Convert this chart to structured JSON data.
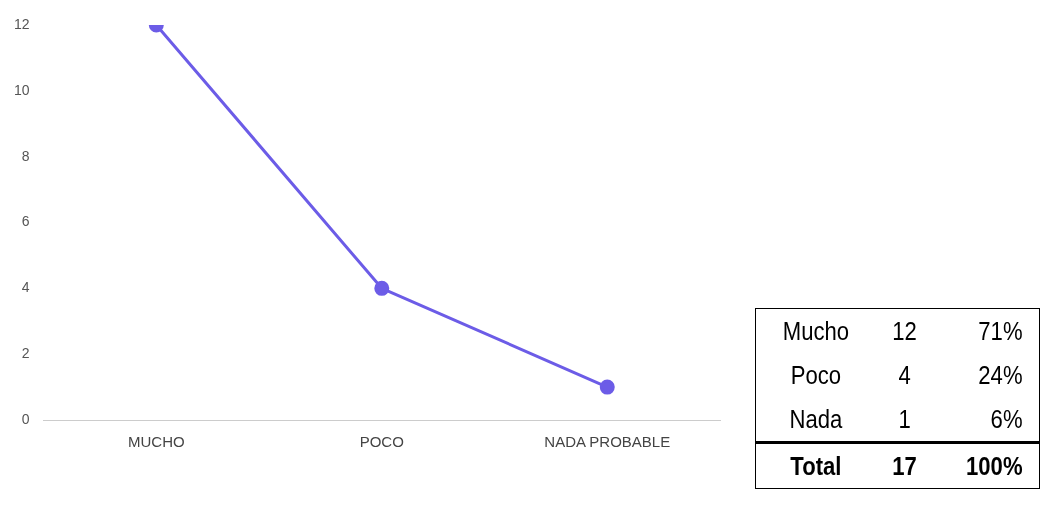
{
  "chart_data": {
    "type": "line",
    "categories": [
      "MUCHO",
      "POCO",
      "NADA PROBABLE"
    ],
    "series": [
      {
        "color": "#6c5ce7",
        "values": [
          12,
          4,
          1
        ]
      }
    ],
    "ylim": [
      0,
      12
    ],
    "yticks": [
      0,
      2,
      4,
      6,
      8,
      10,
      12
    ],
    "grid": false,
    "legend": false,
    "marker": "circle",
    "line_style": "solid",
    "annotations": [
      "Mucho",
      "12",
      "71%",
      "Poco",
      "4",
      "24%",
      "Nada",
      "1",
      "6%",
      "Total",
      "17",
      "100%"
    ]
  }
}
